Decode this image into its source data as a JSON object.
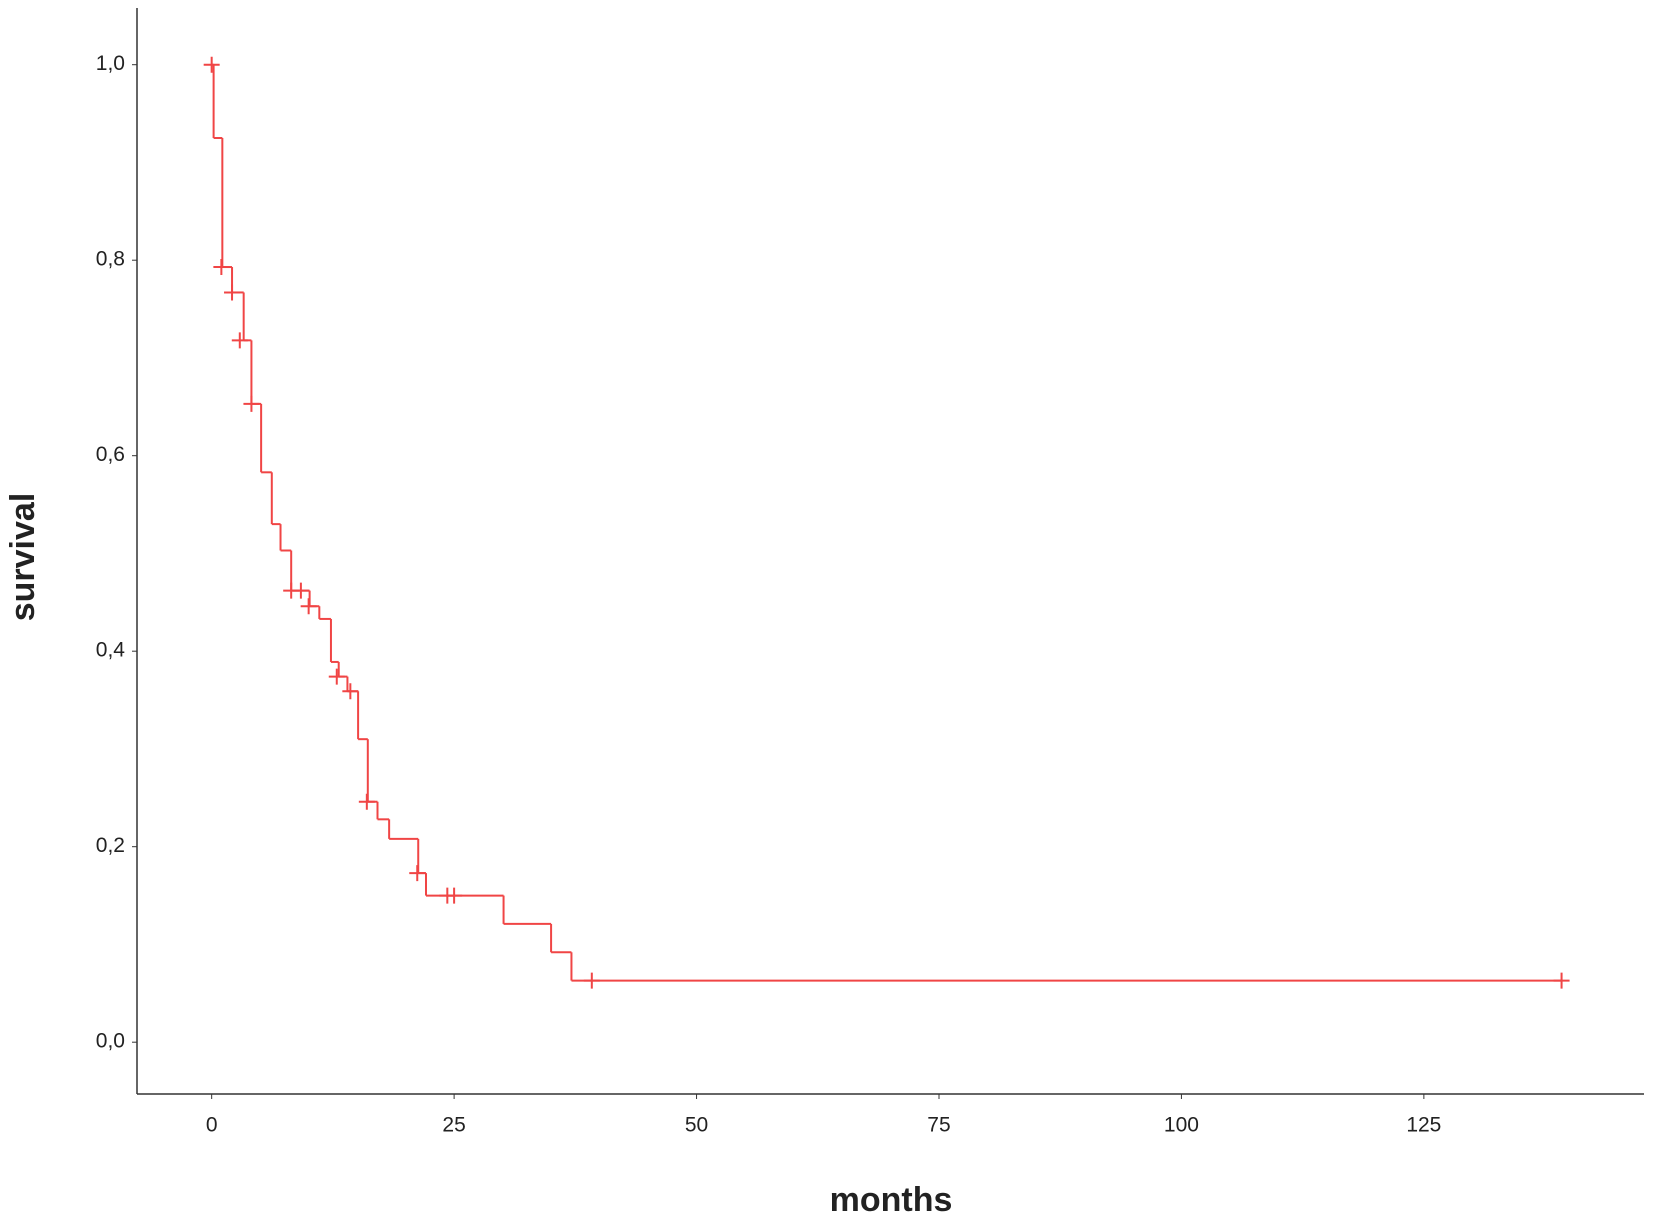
{
  "chart_data": {
    "type": "step",
    "x_label": "months",
    "y_label": "survival",
    "xlim": [
      -7.7,
      147.7
    ],
    "ylim": [
      -0.053,
      1.058
    ],
    "xticks": [
      0,
      25,
      50,
      75,
      100,
      125
    ],
    "yticks": [
      {
        "value": 0,
        "label": "0,0"
      },
      {
        "value": 0.2,
        "label": "0,2"
      },
      {
        "value": 0.4,
        "label": "0,4"
      },
      {
        "value": 0.6,
        "label": "0,6"
      },
      {
        "value": 0.8,
        "label": "0,8"
      },
      {
        "value": 1.0,
        "label": "1,0"
      }
    ],
    "color": "#f04545",
    "x": [
      0,
      0.2,
      1.1,
      2.1,
      3.3,
      4.1,
      5.1,
      6.2,
      7.1,
      8.2,
      10.1,
      11.1,
      12.3,
      13.1,
      14.0,
      15.1,
      16.1,
      17.1,
      18.3,
      21.3,
      22.1,
      30.1,
      35.0,
      37.1,
      139.2
    ],
    "y": [
      1.0,
      0.925,
      0.793,
      0.767,
      0.718,
      0.653,
      0.583,
      0.53,
      0.503,
      0.462,
      0.446,
      0.433,
      0.389,
      0.374,
      0.359,
      0.31,
      0.246,
      0.228,
      0.208,
      0.173,
      0.15,
      0.121,
      0.092,
      0.063,
      0.063
    ],
    "censored_x": [
      0,
      1.0,
      2.1,
      2.9,
      4.1,
      8.2,
      9.2,
      10.0,
      12.9,
      14.3,
      16.0,
      21.2,
      24.3,
      25.0,
      39.2,
      139.2
    ],
    "censored_y": [
      1.0,
      0.793,
      0.767,
      0.718,
      0.653,
      0.462,
      0.462,
      0.446,
      0.374,
      0.359,
      0.246,
      0.173,
      0.15,
      0.15,
      0.063,
      0.063
    ]
  }
}
